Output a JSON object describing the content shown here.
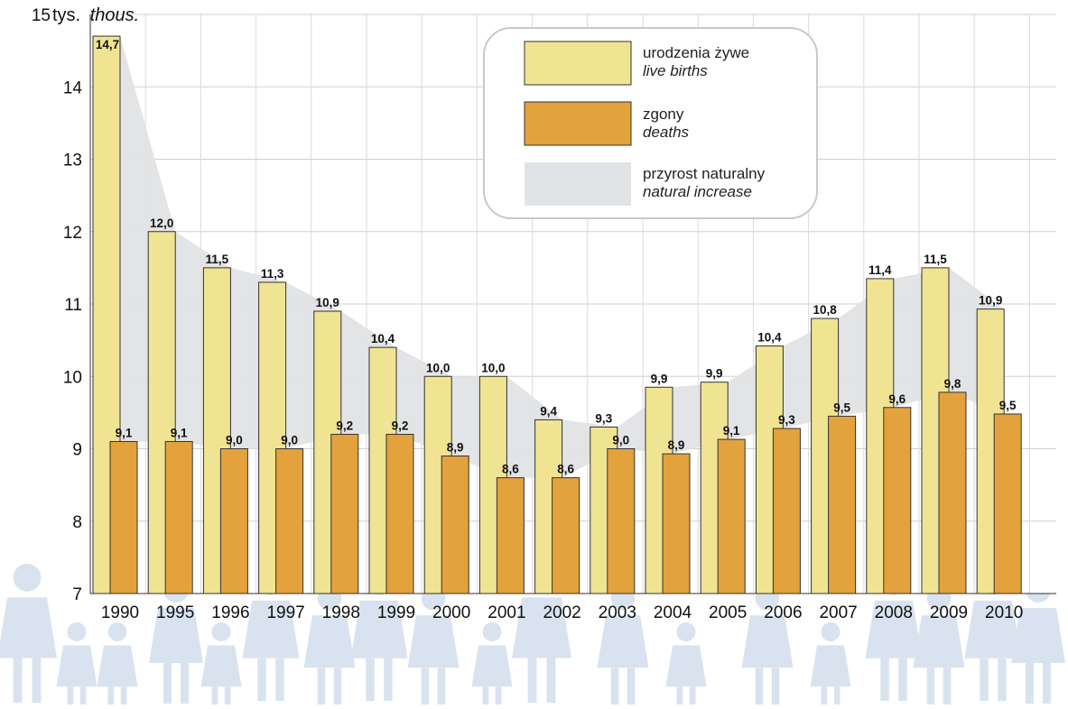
{
  "chart_data": {
    "type": "bar",
    "y_axis_label_pl": "tys.",
    "y_axis_label_en": "thous.",
    "ylim": [
      7,
      15
    ],
    "yticks": [
      7,
      8,
      9,
      10,
      11,
      12,
      13,
      14,
      15
    ],
    "yticks_labels": [
      "7",
      "8",
      "9",
      "10",
      "11",
      "12",
      "13",
      "14",
      "15"
    ],
    "grid": true,
    "legend_placement": "top-right",
    "categories": [
      "1990",
      "1995",
      "1996",
      "1997",
      "1998",
      "1999",
      "2000",
      "2001",
      "2002",
      "2003",
      "2004",
      "2005",
      "2006",
      "2007",
      "2008",
      "2009",
      "2010"
    ],
    "series": [
      {
        "name_pl": "urodzenia żywe",
        "name_en": "live births",
        "color": "#F0E493",
        "values": [
          14.7,
          12.0,
          11.5,
          11.3,
          10.9,
          10.4,
          10.0,
          10.0,
          9.4,
          9.3,
          9.85,
          9.92,
          10.42,
          10.8,
          11.35,
          11.5,
          10.93
        ],
        "labels": [
          "14,7",
          "12,0",
          "11,5",
          "11,3",
          "10,9",
          "10,4",
          "10,0",
          "10,0",
          "9,4",
          "9,3",
          "9,9",
          "9,9",
          "10,4",
          "10,8",
          "11,4",
          "11,5",
          "10,9"
        ]
      },
      {
        "name_pl": "zgony",
        "name_en": "deaths",
        "color": "#E3A23C",
        "values": [
          9.1,
          9.1,
          9.0,
          9.0,
          9.2,
          9.2,
          8.9,
          8.6,
          8.6,
          9.0,
          8.93,
          9.13,
          9.28,
          9.45,
          9.57,
          9.78,
          9.48
        ],
        "labels": [
          "9,1",
          "9,1",
          "9,0",
          "9,0",
          "9,2",
          "9,2",
          "8,9",
          "8,6",
          "8,6",
          "9,0",
          "8,9",
          "9,1",
          "9,3",
          "9,5",
          "9,6",
          "9,8",
          "9,5"
        ]
      }
    ],
    "area": {
      "name_pl": "przyrost naturalny",
      "name_en": "natural increase",
      "color": "#E2E3E5"
    }
  }
}
